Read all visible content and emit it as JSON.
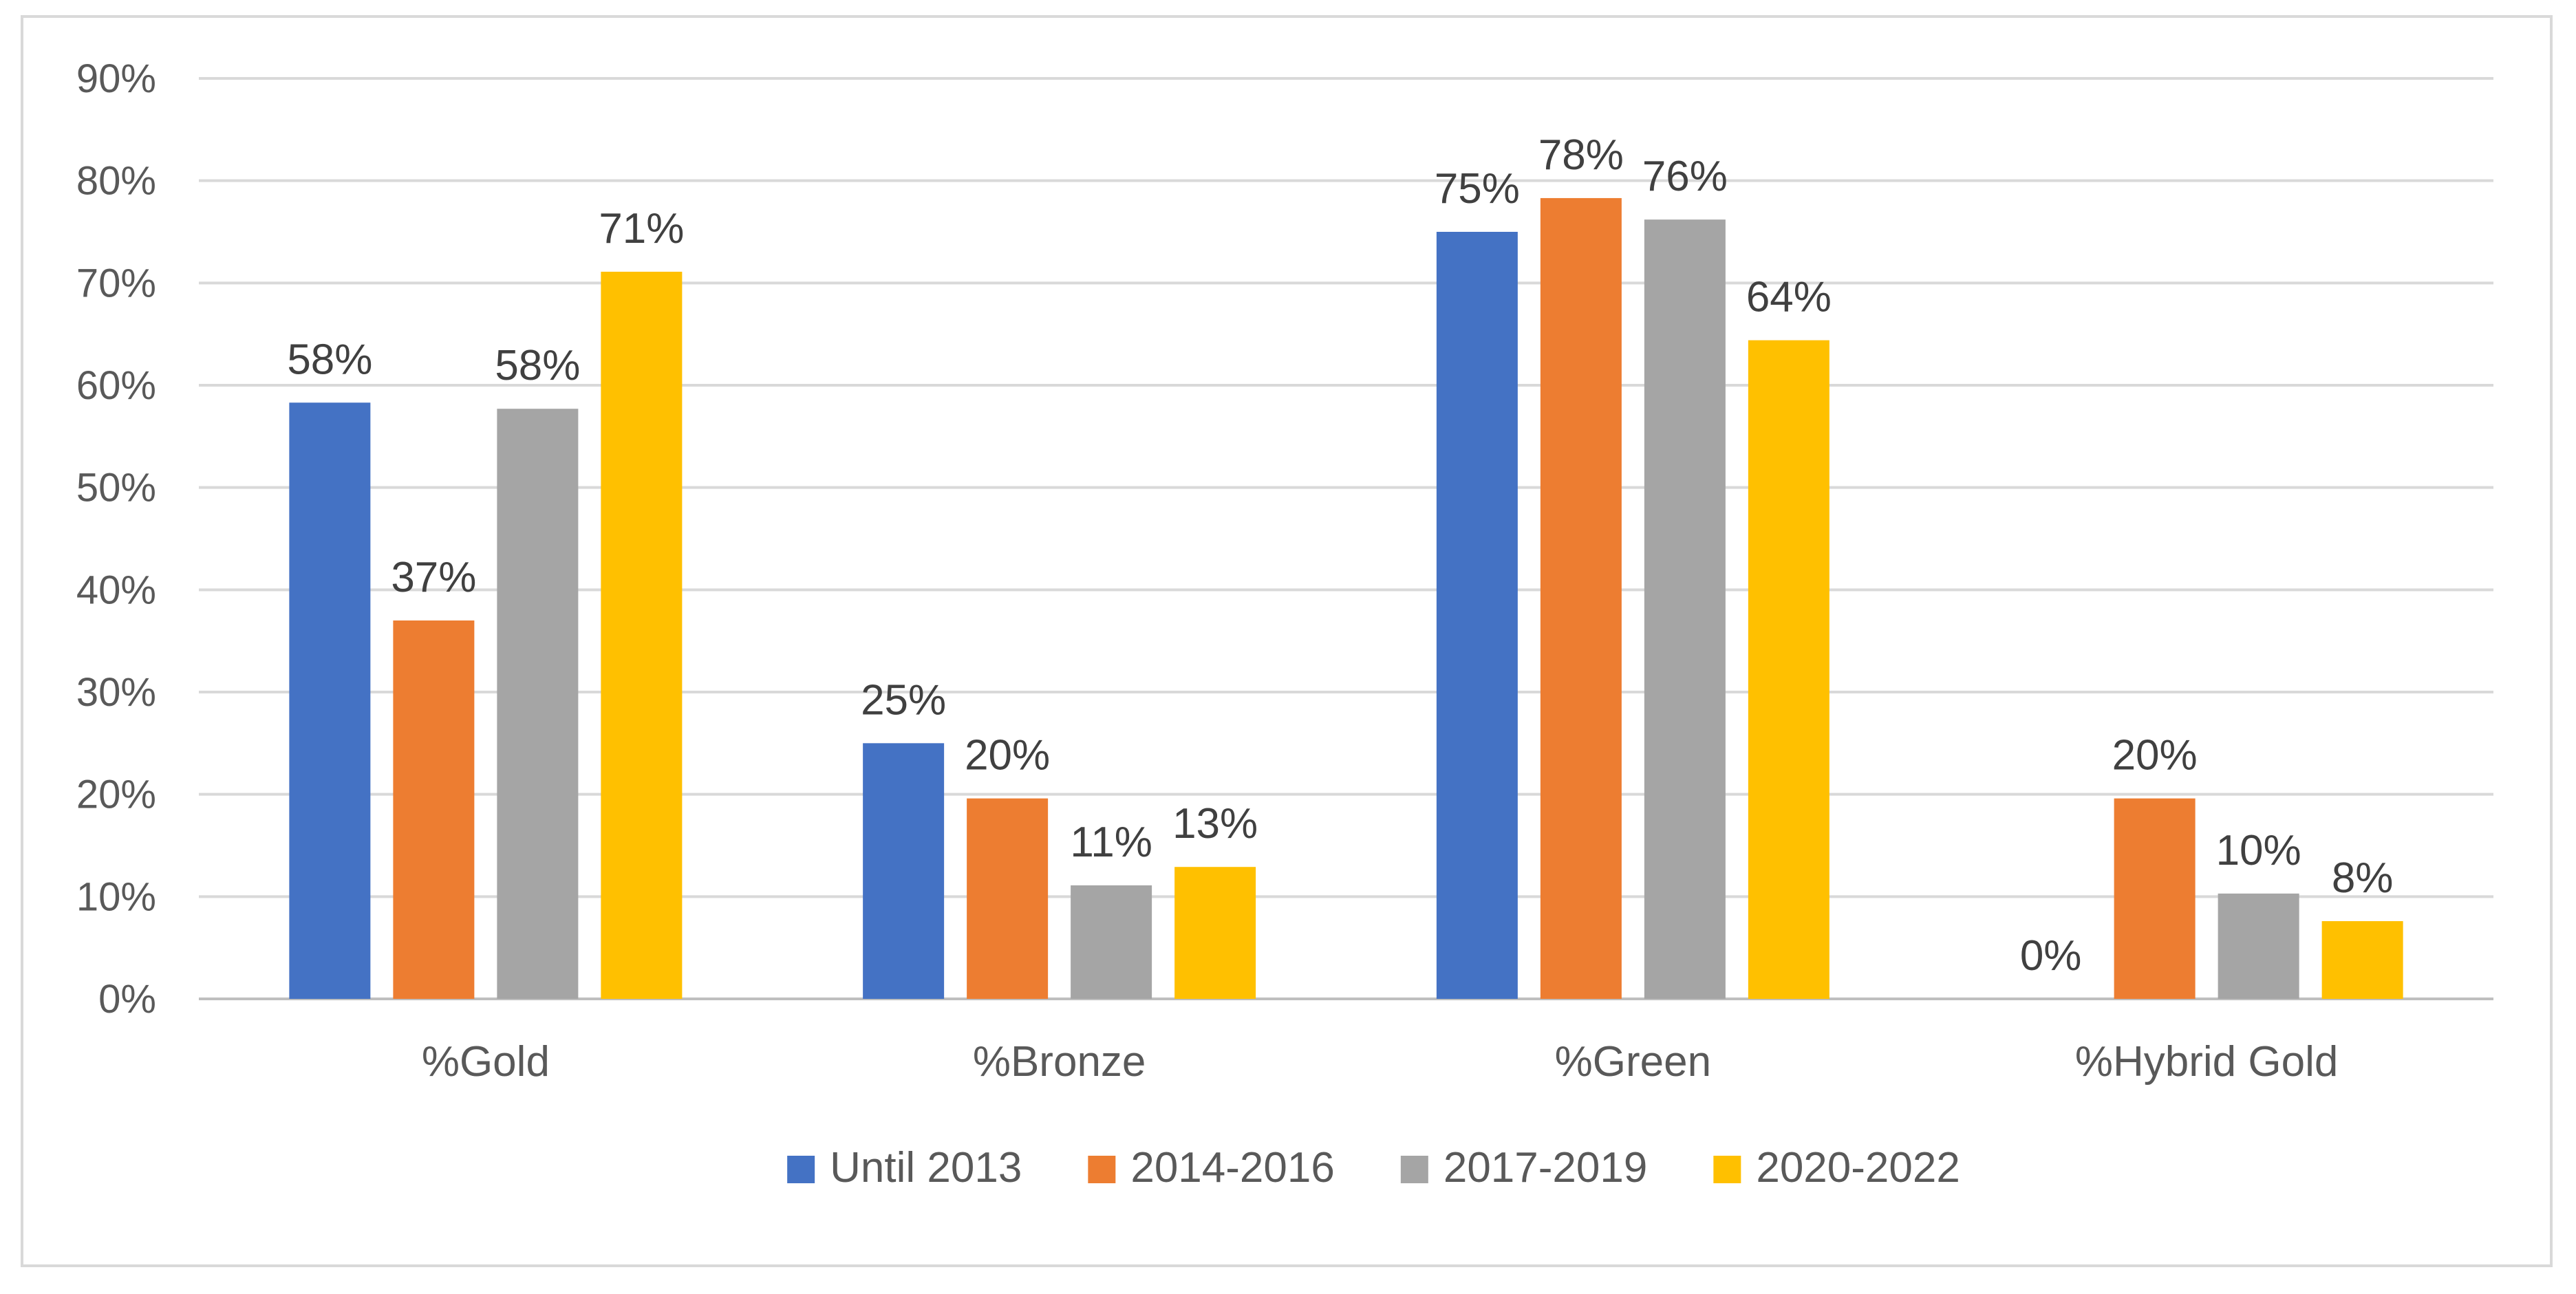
{
  "chart_data": {
    "type": "bar",
    "title": "",
    "xlabel": "",
    "ylabel": "",
    "categories": [
      "%Gold",
      "%Bronze",
      "%Green",
      "%Hybrid Gold"
    ],
    "series": [
      {
        "name": "Until 2013",
        "color": "#4472C4",
        "values": [
          58.3,
          25.0,
          75.0,
          0.0
        ],
        "labels": [
          "58%",
          "25%",
          "75%",
          "0%"
        ]
      },
      {
        "name": "2014-2016",
        "color": "#ED7D31",
        "values": [
          37.0,
          19.6,
          78.3,
          19.6
        ],
        "labels": [
          "37%",
          "20%",
          "78%",
          "20%"
        ]
      },
      {
        "name": "2017-2019",
        "color": "#A5A5A5",
        "values": [
          57.7,
          11.1,
          76.2,
          10.3
        ],
        "labels": [
          "58%",
          "11%",
          "76%",
          "10%"
        ]
      },
      {
        "name": "2020-2022",
        "color": "#FFC000",
        "values": [
          71.1,
          12.9,
          64.4,
          7.6
        ],
        "labels": [
          "71%",
          "13%",
          "64%",
          "8%"
        ]
      }
    ],
    "ylim": [
      0,
      90
    ],
    "yticks": [
      0,
      10,
      20,
      30,
      40,
      50,
      60,
      70,
      80,
      90
    ],
    "ytick_labels": [
      "0%",
      "10%",
      "20%",
      "30%",
      "40%",
      "50%",
      "60%",
      "70%",
      "80%",
      "90%"
    ],
    "grid": true,
    "legend": "bottom"
  }
}
